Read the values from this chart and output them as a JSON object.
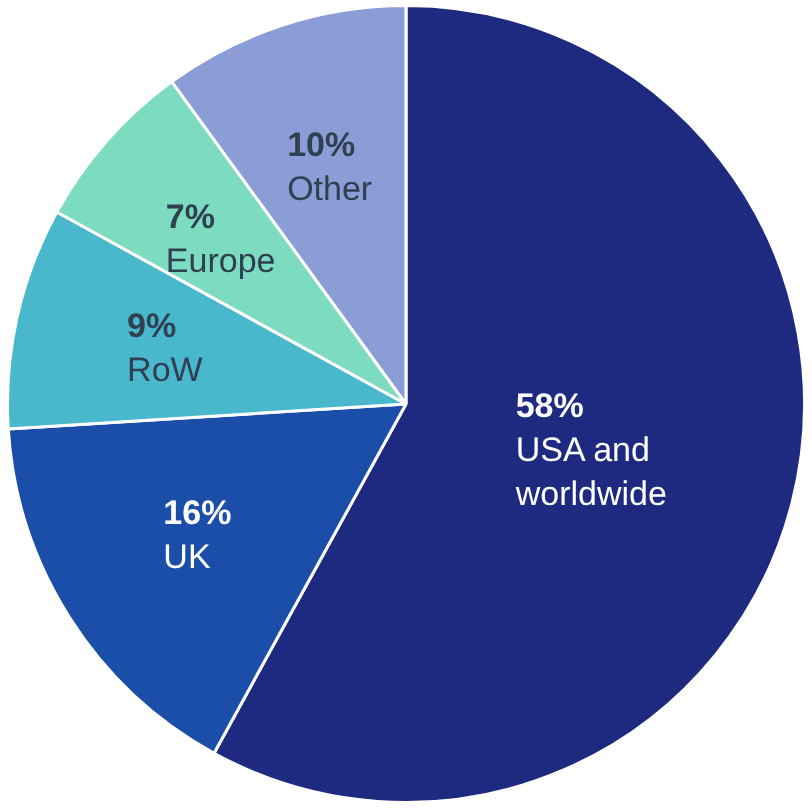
{
  "chart_data": {
    "type": "pie",
    "categories": [
      "USA and worldwide",
      "UK",
      "RoW",
      "Europe",
      "Other"
    ],
    "values": [
      58,
      16,
      9,
      7,
      10
    ],
    "value_labels": [
      "58%",
      "16%",
      "9%",
      "7%",
      "10%"
    ],
    "colors": [
      "#1e2a80",
      "#1a4ea8",
      "#4ab8cc",
      "#7ddcc0",
      "#8c9cd6"
    ],
    "legend": false
  }
}
